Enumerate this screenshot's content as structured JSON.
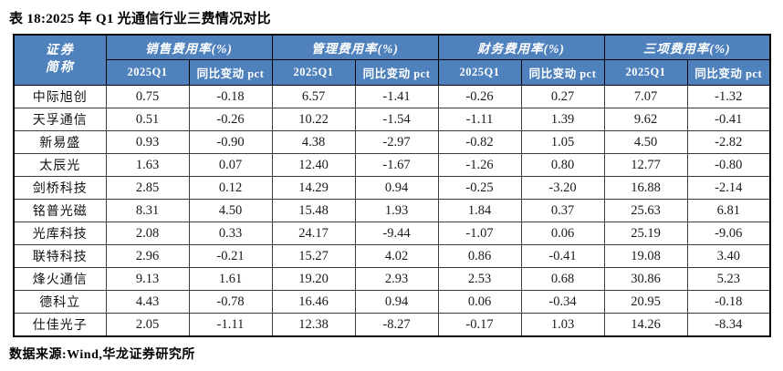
{
  "title": "表 18:2025 年 Q1 光通信行业三费情况对比",
  "source": "数据来源:Wind,华龙证券研究所",
  "colors": {
    "header_bg": "#4F81BD",
    "header_text": "#FFFFFF"
  },
  "table": {
    "corner": {
      "line1": "证券",
      "line2": "简称"
    },
    "groups": [
      {
        "label": "销售费用率(%)"
      },
      {
        "label": "管理费用率(%)"
      },
      {
        "label": "财务费用率(%)"
      },
      {
        "label": "三项费用率(%)"
      }
    ],
    "sub_headers": [
      "2025Q1",
      "同比变动 pct"
    ],
    "rows": [
      {
        "name": "中际旭创",
        "values": [
          "0.75",
          "-0.18",
          "6.57",
          "-1.41",
          "-0.26",
          "0.27",
          "7.07",
          "-1.32"
        ]
      },
      {
        "name": "天孚通信",
        "values": [
          "0.51",
          "-0.26",
          "10.22",
          "-1.54",
          "-1.11",
          "1.39",
          "9.62",
          "-0.41"
        ]
      },
      {
        "name": "新易盛",
        "values": [
          "0.93",
          "-0.90",
          "4.38",
          "-2.97",
          "-0.82",
          "1.05",
          "4.50",
          "-2.82"
        ]
      },
      {
        "name": "太辰光",
        "values": [
          "1.63",
          "0.07",
          "12.40",
          "-1.67",
          "-1.26",
          "0.80",
          "12.77",
          "-0.80"
        ]
      },
      {
        "name": "剑桥科技",
        "values": [
          "2.85",
          "0.12",
          "14.29",
          "0.94",
          "-0.25",
          "-3.20",
          "16.88",
          "-2.14"
        ]
      },
      {
        "name": "铭普光磁",
        "values": [
          "8.31",
          "4.50",
          "15.48",
          "1.93",
          "1.84",
          "0.37",
          "25.63",
          "6.81"
        ]
      },
      {
        "name": "光库科技",
        "values": [
          "2.08",
          "0.33",
          "24.17",
          "-9.44",
          "-1.07",
          "0.06",
          "25.19",
          "-9.06"
        ]
      },
      {
        "name": "联特科技",
        "values": [
          "2.96",
          "-0.21",
          "15.27",
          "4.02",
          "0.86",
          "-0.41",
          "19.08",
          "3.40"
        ]
      },
      {
        "name": "烽火通信",
        "values": [
          "9.13",
          "1.61",
          "19.20",
          "2.93",
          "2.53",
          "0.68",
          "30.86",
          "5.23"
        ]
      },
      {
        "name": "德科立",
        "values": [
          "4.43",
          "-0.78",
          "16.46",
          "0.94",
          "0.06",
          "-0.34",
          "20.95",
          "-0.18"
        ]
      },
      {
        "name": "仕佳光子",
        "values": [
          "2.05",
          "-1.11",
          "12.38",
          "-8.27",
          "-0.17",
          "1.03",
          "14.26",
          "-8.34"
        ]
      }
    ]
  }
}
